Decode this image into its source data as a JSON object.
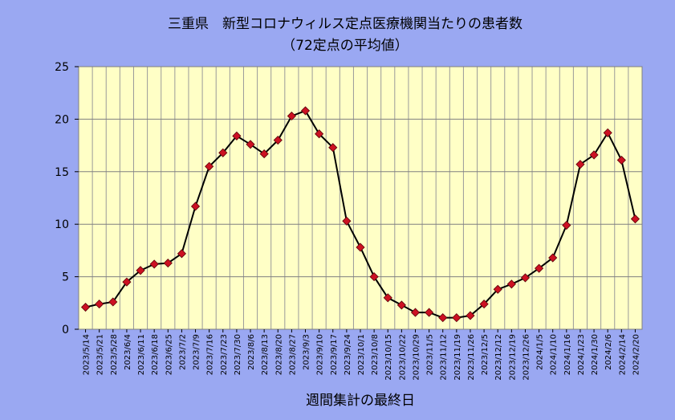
{
  "chart_data": {
    "type": "line",
    "title": "三重県　新型コロナウィルス定点医療機関当たりの患者数",
    "subtitle": "（72定点の平均値）",
    "xlabel": "週間集計の最終日",
    "ylabel": "",
    "ylim": [
      0,
      25
    ],
    "yticks": [
      "0",
      "5",
      "10",
      "15",
      "20",
      "25"
    ],
    "grid": true,
    "legend": "none",
    "categories": [
      "2023/5/14",
      "2023/5/21",
      "2023/5/28",
      "2023/6/4",
      "2023/6/11",
      "2023/6/18",
      "2023/6/25",
      "2023/7/2",
      "2023/7/9",
      "2023/7/16",
      "2023/7/23",
      "2023/7/30",
      "2023/8/6",
      "2023/8/13",
      "2023/8/20",
      "2023/8/27",
      "2023/9/3",
      "2023/9/10",
      "2023/9/17",
      "2023/9/24",
      "2023/10/1",
      "2023/10/8",
      "2023/10/15",
      "2023/10/22",
      "2023/10/29",
      "2023/11/5",
      "2023/11/12",
      "2023/11/19",
      "2023/11/26",
      "2023/12/5",
      "2023/12/12",
      "2023/12/19",
      "2023/12/26",
      "2024/1/5",
      "2024/1/10",
      "2024/1/16",
      "2024/1/23",
      "2024/1/30",
      "2024/2/6",
      "2024/2/14",
      "2024/2/20"
    ],
    "series": [
      {
        "values": [
          2.1,
          2.4,
          2.6,
          4.5,
          5.6,
          6.2,
          6.3,
          7.2,
          11.7,
          15.5,
          16.8,
          18.4,
          17.6,
          16.7,
          18.0,
          20.3,
          20.8,
          18.6,
          17.3,
          10.3,
          7.8,
          5.0,
          3.0,
          2.3,
          1.6,
          1.6,
          1.1,
          1.1,
          1.3,
          2.4,
          3.8,
          4.3,
          4.9,
          5.8,
          6.8,
          9.9,
          15.7,
          16.6,
          18.7,
          16.1,
          10.5
        ],
        "color": "#000000",
        "marker_color": "#cc1122"
      }
    ],
    "colors": {
      "background": "#9aa8f2",
      "plot_area": "#ffffc6",
      "gridline": "#9a9a9a"
    }
  }
}
